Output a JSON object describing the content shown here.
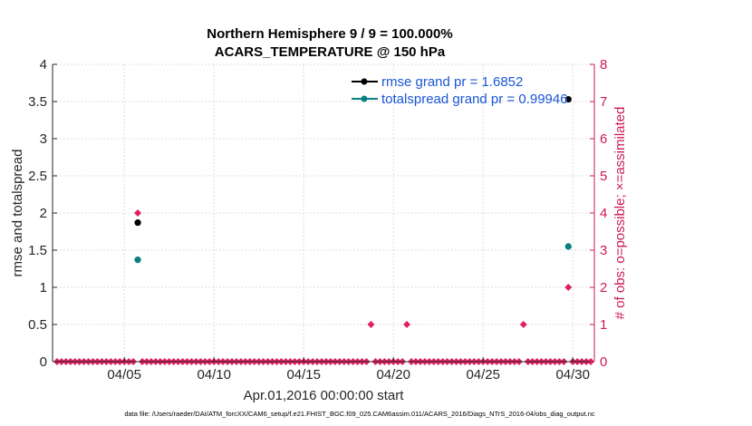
{
  "colors": {
    "left_axis": "#262626",
    "right_axis": "#cc1a55",
    "rmse": "#000000",
    "spread": "#0a8080",
    "obs": "#e0205f",
    "legend_text": "#1a56d6",
    "grid": "#dcdcdc"
  },
  "chart_data": {
    "type": "scatter",
    "title": [
      "Northern Hemisphere 9 / 9 = 100.000%",
      "ACARS_TEMPERATURE @ 150 hPa"
    ],
    "xlabel": "Apr.01,2016 00:00:00 start",
    "ylabel": "rmse and totalspread",
    "y2label": "# of obs: o=possible; ×=assimilated",
    "footer": "data file: /Users/raeder/DAI/ATM_forcXX/CAM6_setup/f.e21.FHIST_BGC.f09_025.CAM6assim.011/ACARS_2016/Diags_NTrS_2016-04/obs_diag_output.nc",
    "xlim": [
      1,
      31.2
    ],
    "ylim": [
      0,
      4
    ],
    "y2lim": [
      0,
      8
    ],
    "x_ticks": [
      5,
      10,
      15,
      20,
      25,
      30
    ],
    "x_tick_labels": [
      "04/05",
      "04/10",
      "04/15",
      "04/20",
      "04/25",
      "04/30"
    ],
    "y_ticks": [
      0,
      0.5,
      1,
      1.5,
      2,
      2.5,
      3,
      3.5,
      4
    ],
    "y_tick_labels": [
      "0",
      "0.5",
      "1",
      "1.5",
      "2",
      "2.5",
      "3",
      "3.5",
      "4"
    ],
    "y2_ticks": [
      0,
      1,
      2,
      3,
      4,
      5,
      6,
      7,
      8
    ],
    "y2_tick_labels": [
      "0",
      "1",
      "2",
      "3",
      "4",
      "5",
      "6",
      "7",
      "8"
    ],
    "grid": true,
    "legend_position": "top-right",
    "legend": [
      "rmse grand pr = 1.6852",
      "totalspread grand pr = 0.99946"
    ],
    "series": [
      {
        "name": "rmse grand pr = 1.6852",
        "axis": "left",
        "marker": "dot",
        "points": [
          [
            5.75,
            1.87
          ],
          [
            29.75,
            3.53
          ]
        ]
      },
      {
        "name": "totalspread grand pr = 0.99946",
        "axis": "left",
        "marker": "dot",
        "points": [
          [
            5.75,
            1.37
          ],
          [
            29.75,
            1.55
          ]
        ]
      },
      {
        "name": "obs",
        "axis": "right",
        "marker": "diamond",
        "x_start": 1.25,
        "x_step": 0.25,
        "count": 120,
        "baseline": 0,
        "nonzero": [
          [
            5.75,
            4
          ],
          [
            18.75,
            1
          ],
          [
            20.75,
            1
          ],
          [
            27.25,
            1
          ],
          [
            29.75,
            2
          ]
        ]
      }
    ]
  }
}
